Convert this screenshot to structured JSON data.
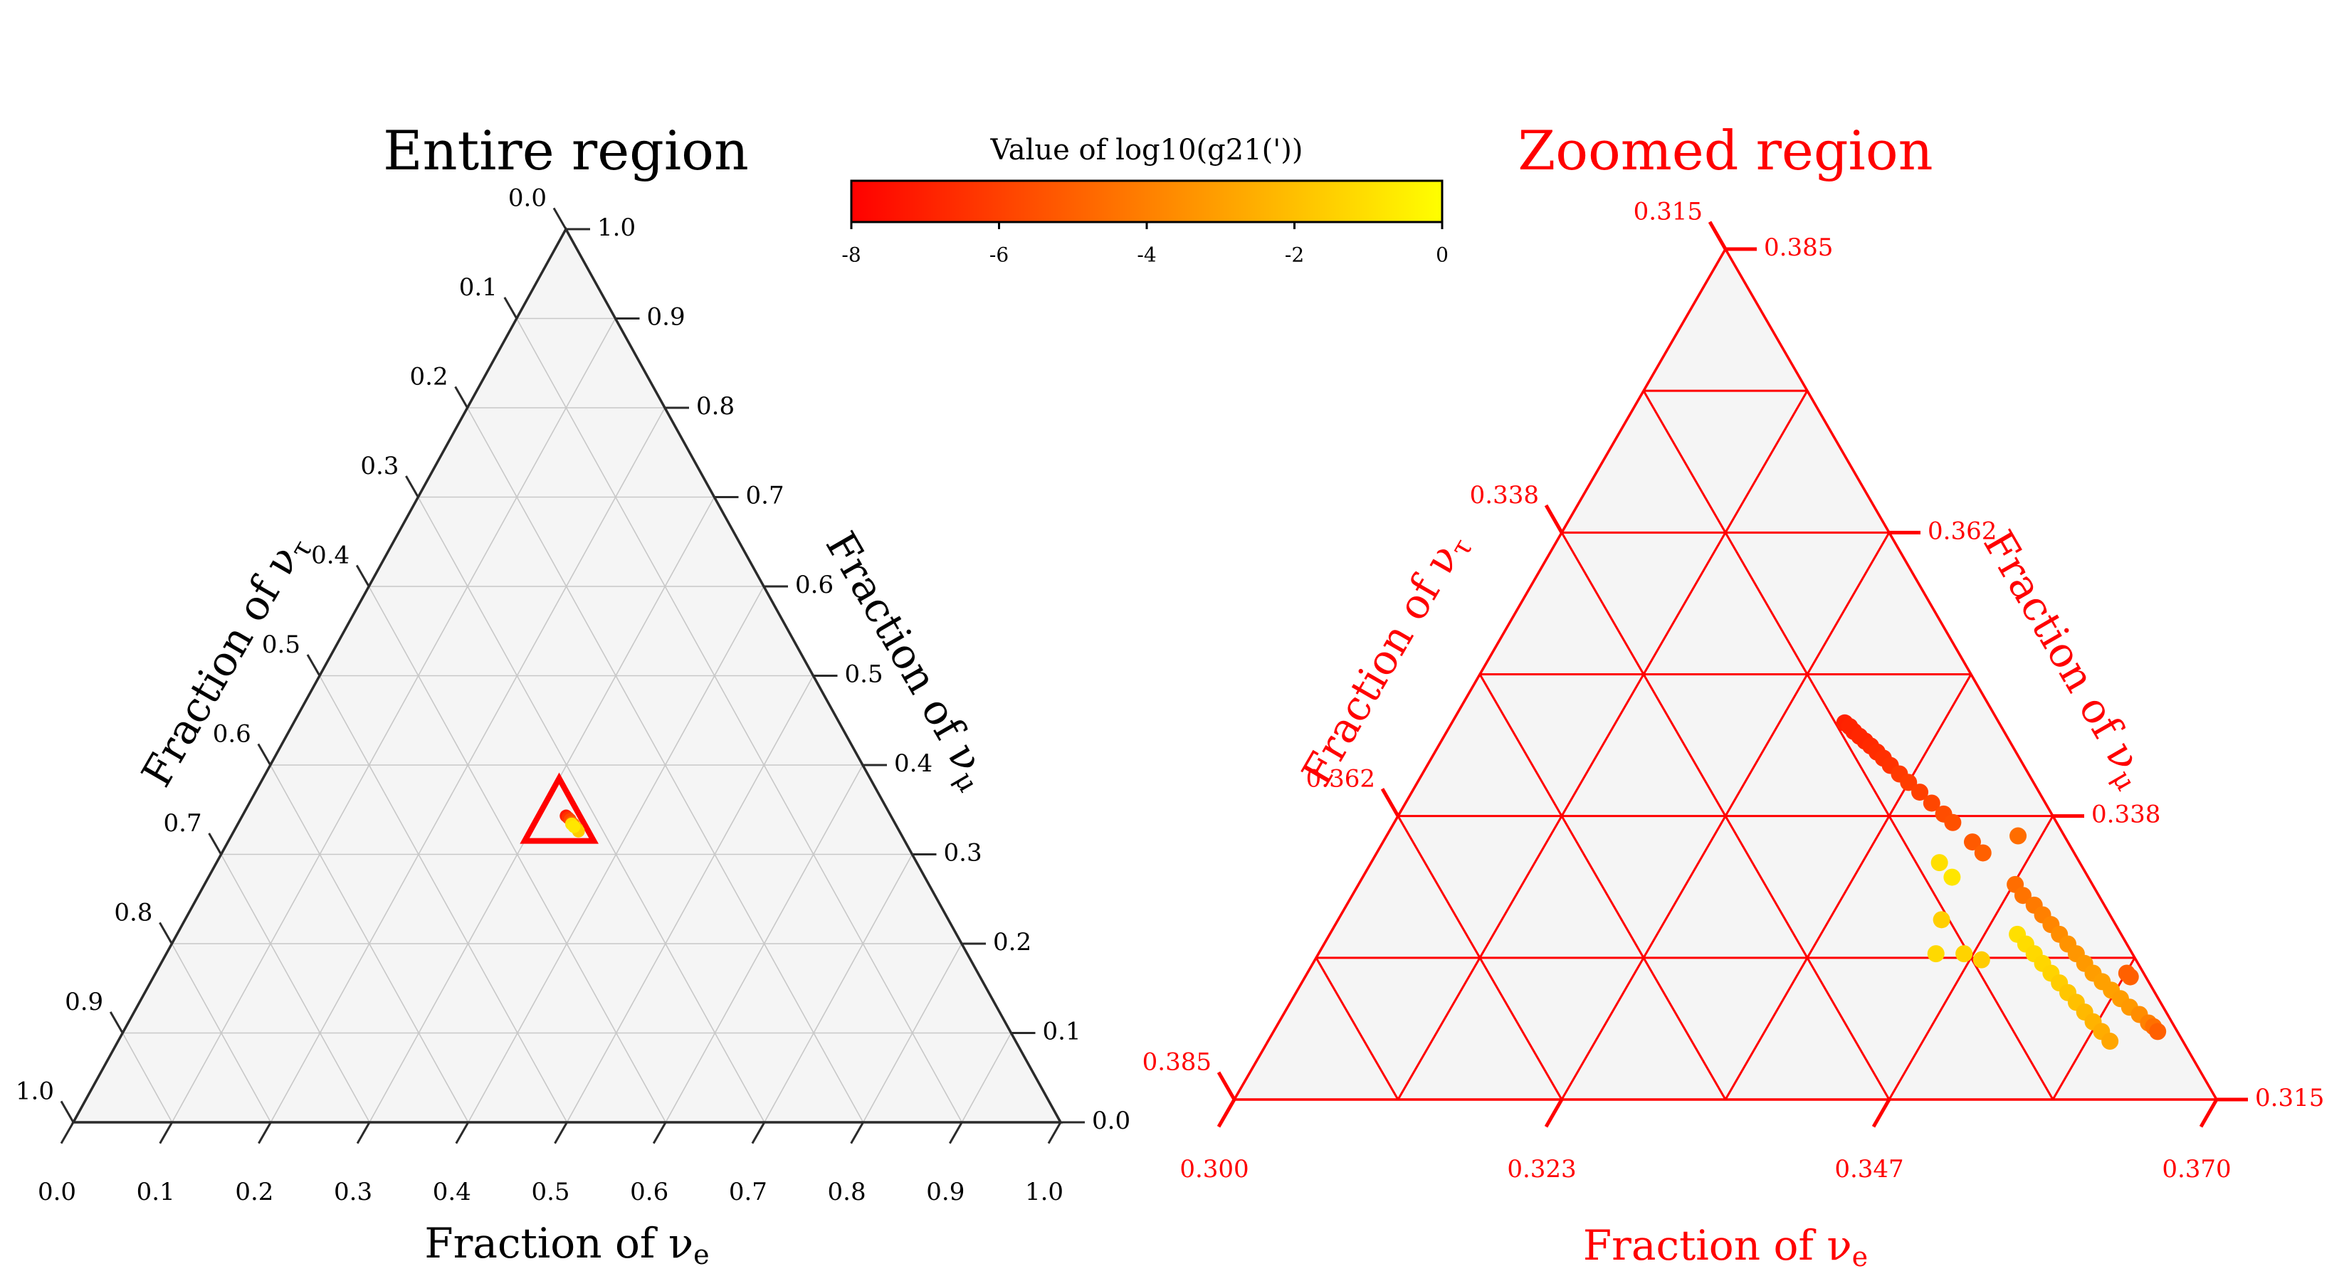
{
  "figure": {
    "colorbar_title": "Value of log10(g21('))",
    "colorbar_ticks": [
      "-8",
      "-6",
      "-4",
      "-2",
      "0"
    ],
    "colorbar_range": [
      -8,
      0
    ],
    "colormap": [
      "#ff0000",
      "#ff8000",
      "#ffff00"
    ]
  },
  "chart_data": [
    {
      "type": "scatter",
      "layout": "ternary",
      "title": "Entire region",
      "title_color": "#000000",
      "axes": {
        "bottom": {
          "label": "Fraction of ν",
          "label_sub": "e",
          "range": [
            0.0,
            1.0
          ],
          "ticks": [
            "0.0",
            "0.1",
            "0.2",
            "0.3",
            "0.4",
            "0.5",
            "0.6",
            "0.7",
            "0.8",
            "0.9",
            "1.0"
          ]
        },
        "right": {
          "label": "Fraction of ν",
          "label_sub": "μ",
          "range": [
            0.0,
            1.0
          ],
          "ticks": [
            "0.0",
            "0.1",
            "0.2",
            "0.3",
            "0.4",
            "0.5",
            "0.6",
            "0.7",
            "0.8",
            "0.9",
            "1.0"
          ]
        },
        "left": {
          "label": "Fraction of ν",
          "label_sub": "τ",
          "range": [
            0.0,
            1.0
          ],
          "ticks": [
            "0.0",
            "0.1",
            "0.2",
            "0.3",
            "0.4",
            "0.5",
            "0.6",
            "0.7",
            "0.8",
            "0.9",
            "1.0"
          ]
        }
      },
      "grid": true,
      "zoom_box": {
        "e_min": 0.3,
        "mu_min": 0.315,
        "tau_min": 0.315,
        "color": "#ff0000"
      },
      "points": [
        {
          "e": 0.328,
          "mu": 0.343,
          "tau": 0.329,
          "log10_g": -7.2
        },
        {
          "e": 0.331,
          "mu": 0.341,
          "tau": 0.328,
          "log10_g": -6.5
        },
        {
          "e": 0.334,
          "mu": 0.339,
          "tau": 0.327,
          "log10_g": -5.8
        },
        {
          "e": 0.337,
          "mu": 0.336,
          "tau": 0.327,
          "log10_g": -5.0
        },
        {
          "e": 0.34,
          "mu": 0.334,
          "tau": 0.326,
          "log10_g": -4.2
        },
        {
          "e": 0.343,
          "mu": 0.331,
          "tau": 0.326,
          "log10_g": -3.3
        },
        {
          "e": 0.346,
          "mu": 0.329,
          "tau": 0.325,
          "log10_g": -2.4
        },
        {
          "e": 0.349,
          "mu": 0.326,
          "tau": 0.325,
          "log10_g": -1.6
        },
        {
          "e": 0.338,
          "mu": 0.334,
          "tau": 0.328,
          "log10_g": -1.0
        },
        {
          "e": 0.342,
          "mu": 0.331,
          "tau": 0.327,
          "log10_g": -0.8
        }
      ]
    },
    {
      "type": "scatter",
      "layout": "ternary",
      "title": "Zoomed region",
      "title_color": "#ff0000",
      "axes": {
        "bottom": {
          "label": "Fraction of ν",
          "label_sub": "e",
          "range": [
            0.3,
            0.37
          ],
          "ticks": [
            "0.300",
            "0.323",
            "0.347",
            "0.370"
          ]
        },
        "right": {
          "label": "Fraction of ν",
          "label_sub": "μ",
          "range": [
            0.315,
            0.385
          ],
          "ticks": [
            "0.315",
            "0.338",
            "0.362",
            "0.385"
          ]
        },
        "left": {
          "label": "Fraction of ν",
          "label_sub": "τ",
          "range": [
            0.315,
            0.385
          ],
          "ticks": [
            "0.315",
            "0.338",
            "0.362",
            "0.385"
          ]
        }
      },
      "grid": true,
      "grid_color": "#ff0000",
      "points": [
        {
          "e": 0.328,
          "mu": 0.346,
          "tau": 0.326,
          "log10_g": -7.0
        },
        {
          "e": 0.3285,
          "mu": 0.3457,
          "tau": 0.3258,
          "log10_g": -6.9
        },
        {
          "e": 0.329,
          "mu": 0.3453,
          "tau": 0.3257,
          "log10_g": -6.9
        },
        {
          "e": 0.3296,
          "mu": 0.3449,
          "tau": 0.3255,
          "log10_g": -6.8
        },
        {
          "e": 0.3302,
          "mu": 0.3445,
          "tau": 0.3253,
          "log10_g": -6.8
        },
        {
          "e": 0.3308,
          "mu": 0.3441,
          "tau": 0.3251,
          "log10_g": -6.7
        },
        {
          "e": 0.3315,
          "mu": 0.3436,
          "tau": 0.3249,
          "log10_g": -6.6
        },
        {
          "e": 0.3322,
          "mu": 0.3431,
          "tau": 0.3247,
          "log10_g": -6.5
        },
        {
          "e": 0.333,
          "mu": 0.3425,
          "tau": 0.3245,
          "log10_g": -6.4
        },
        {
          "e": 0.334,
          "mu": 0.3418,
          "tau": 0.3242,
          "log10_g": -6.2
        },
        {
          "e": 0.335,
          "mu": 0.3411,
          "tau": 0.3239,
          "log10_g": -6.1
        },
        {
          "e": 0.3362,
          "mu": 0.3403,
          "tau": 0.3235,
          "log10_g": -6.0
        },
        {
          "e": 0.3375,
          "mu": 0.3394,
          "tau": 0.3231,
          "log10_g": -5.8
        },
        {
          "e": 0.3388,
          "mu": 0.3385,
          "tau": 0.3227,
          "log10_g": -5.6
        },
        {
          "e": 0.3398,
          "mu": 0.3378,
          "tau": 0.3224,
          "log10_g": -5.5
        },
        {
          "e": 0.342,
          "mu": 0.3362,
          "tau": 0.3218,
          "log10_g": -5.2
        },
        {
          "e": 0.3432,
          "mu": 0.3353,
          "tau": 0.3215,
          "log10_g": -5.0
        },
        {
          "e": 0.3468,
          "mu": 0.3327,
          "tau": 0.3205,
          "log10_g": -4.6
        },
        {
          "e": 0.3478,
          "mu": 0.3318,
          "tau": 0.3204,
          "log10_g": -4.4
        },
        {
          "e": 0.349,
          "mu": 0.331,
          "tau": 0.32,
          "log10_g": -4.2
        },
        {
          "e": 0.35,
          "mu": 0.3302,
          "tau": 0.3198,
          "log10_g": -4.0
        },
        {
          "e": 0.351,
          "mu": 0.3294,
          "tau": 0.3196,
          "log10_g": -3.8
        },
        {
          "e": 0.352,
          "mu": 0.3286,
          "tau": 0.3194,
          "log10_g": -3.6
        },
        {
          "e": 0.353,
          "mu": 0.3278,
          "tau": 0.3192,
          "log10_g": -3.4
        },
        {
          "e": 0.354,
          "mu": 0.327,
          "tau": 0.319,
          "log10_g": -3.3
        },
        {
          "e": 0.355,
          "mu": 0.3262,
          "tau": 0.3188,
          "log10_g": -3.2
        },
        {
          "e": 0.356,
          "mu": 0.3254,
          "tau": 0.3186,
          "log10_g": -3.1
        },
        {
          "e": 0.357,
          "mu": 0.3247,
          "tau": 0.3183,
          "log10_g": -3.0
        },
        {
          "e": 0.358,
          "mu": 0.324,
          "tau": 0.318,
          "log10_g": -3.0
        },
        {
          "e": 0.359,
          "mu": 0.3233,
          "tau": 0.3177,
          "log10_g": -3.1
        },
        {
          "e": 0.36,
          "mu": 0.3226,
          "tau": 0.3174,
          "log10_g": -3.2
        },
        {
          "e": 0.361,
          "mu": 0.322,
          "tau": 0.317,
          "log10_g": -3.6
        },
        {
          "e": 0.362,
          "mu": 0.3213,
          "tau": 0.3167,
          "log10_g": -4.0
        },
        {
          "e": 0.3625,
          "mu": 0.321,
          "tau": 0.3165,
          "log10_g": -4.5
        },
        {
          "e": 0.363,
          "mu": 0.3206,
          "tau": 0.3164,
          "log10_g": -5.0
        },
        {
          "e": 0.3584,
          "mu": 0.3254,
          "tau": 0.3162,
          "log10_g": -5.0
        },
        {
          "e": 0.3588,
          "mu": 0.3251,
          "tau": 0.3161,
          "log10_g": -5.0
        },
        {
          "e": 0.345,
          "mu": 0.3367,
          "tau": 0.3183,
          "log10_g": -4.6
        },
        {
          "e": 0.3405,
          "mu": 0.3345,
          "tau": 0.325,
          "log10_g": -1.0
        },
        {
          "e": 0.342,
          "mu": 0.3333,
          "tau": 0.3247,
          "log10_g": -0.8
        },
        {
          "e": 0.343,
          "mu": 0.3298,
          "tau": 0.3272,
          "log10_g": -1.5
        },
        {
          "e": 0.344,
          "mu": 0.327,
          "tau": 0.329,
          "log10_g": -1.2
        },
        {
          "e": 0.346,
          "mu": 0.327,
          "tau": 0.327,
          "log10_g": -1.4
        },
        {
          "e": 0.3475,
          "mu": 0.3265,
          "tau": 0.326,
          "log10_g": -1.6
        },
        {
          "e": 0.349,
          "mu": 0.3286,
          "tau": 0.3224,
          "log10_g": -1.0
        },
        {
          "e": 0.35,
          "mu": 0.3278,
          "tau": 0.3222,
          "log10_g": -1.1
        },
        {
          "e": 0.351,
          "mu": 0.327,
          "tau": 0.322,
          "log10_g": -1.2
        },
        {
          "e": 0.352,
          "mu": 0.3262,
          "tau": 0.3218,
          "log10_g": -1.3
        },
        {
          "e": 0.353,
          "mu": 0.3254,
          "tau": 0.3216,
          "log10_g": -1.4
        },
        {
          "e": 0.354,
          "mu": 0.3246,
          "tau": 0.3214,
          "log10_g": -1.6
        },
        {
          "e": 0.355,
          "mu": 0.3238,
          "tau": 0.3212,
          "log10_g": -1.8
        },
        {
          "e": 0.356,
          "mu": 0.323,
          "tau": 0.321,
          "log10_g": -2.0
        },
        {
          "e": 0.357,
          "mu": 0.3222,
          "tau": 0.3208,
          "log10_g": -2.2
        },
        {
          "e": 0.358,
          "mu": 0.3214,
          "tau": 0.3206,
          "log10_g": -2.4
        },
        {
          "e": 0.359,
          "mu": 0.3206,
          "tau": 0.3204,
          "log10_g": -2.6
        },
        {
          "e": 0.36,
          "mu": 0.3198,
          "tau": 0.3202,
          "log10_g": -2.8
        }
      ]
    }
  ]
}
